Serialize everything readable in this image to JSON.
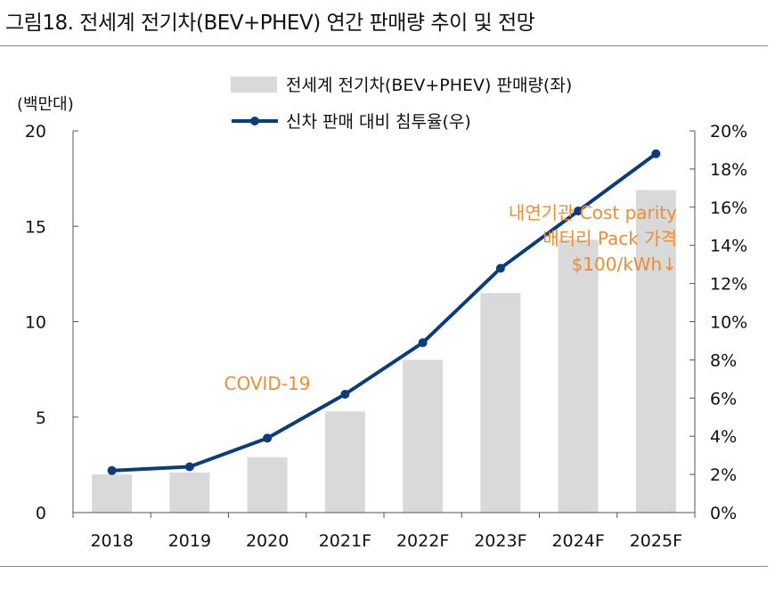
{
  "figure": {
    "title": "그림18. 전세계 전기차(BEV+PHEV) 연간 판매량 추이 및 전망"
  },
  "chart_data": {
    "type": "bar",
    "categories": [
      "2018",
      "2019",
      "2020",
      "2021F",
      "2022F",
      "2023F",
      "2024F",
      "2025F"
    ],
    "series": [
      {
        "name": "전세계 전기차(BEV+PHEV) 판매량(좌)",
        "type": "bar",
        "axis": "left",
        "color": "#d9d9d9",
        "values": [
          2.0,
          2.1,
          2.9,
          5.3,
          8.0,
          11.5,
          14.3,
          16.9
        ]
      },
      {
        "name": "신차 판매 대비 침투율(우)",
        "type": "line",
        "axis": "right",
        "color": "#0e3c78",
        "values": [
          2.2,
          2.4,
          3.9,
          6.2,
          8.9,
          12.8,
          15.8,
          18.8
        ]
      }
    ],
    "y_left": {
      "unit_label": "(백만대)",
      "min": 0,
      "max": 20,
      "ticks": [
        "0",
        "5",
        "10",
        "15",
        "20"
      ]
    },
    "y_right": {
      "min": 0,
      "max": 20,
      "ticks": [
        "0%",
        "2%",
        "4%",
        "6%",
        "8%",
        "10%",
        "12%",
        "14%",
        "16%",
        "18%",
        "20%"
      ]
    },
    "grid": false,
    "legend": "top-center",
    "annotations": [
      {
        "text": "COVID-19",
        "color": "#f08c32"
      },
      {
        "lines": [
          "내연기관 Cost parity",
          "배터리 Pack 가격",
          "$100/kWh↓"
        ],
        "color": "#f08c32"
      }
    ]
  }
}
